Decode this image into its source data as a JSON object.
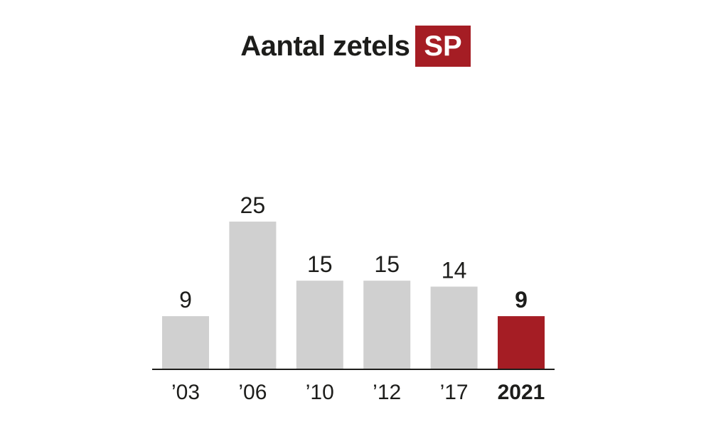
{
  "title": {
    "text": "Aantal zetels",
    "party": "SP"
  },
  "colors": {
    "bar": "#d0d0d0",
    "highlight": "#a51d24",
    "text": "#1d1d1b",
    "axis": "#1d1d1b"
  },
  "chart_data": {
    "type": "bar",
    "title": "Aantal zetels SP",
    "categories": [
      "’03",
      "’06",
      "’10",
      "’12",
      "’17",
      "2021"
    ],
    "values": [
      9,
      25,
      15,
      15,
      14,
      9
    ],
    "highlight_index": 5,
    "ylim": [
      0,
      25
    ],
    "grid": false,
    "xlabel": "",
    "ylabel": ""
  }
}
